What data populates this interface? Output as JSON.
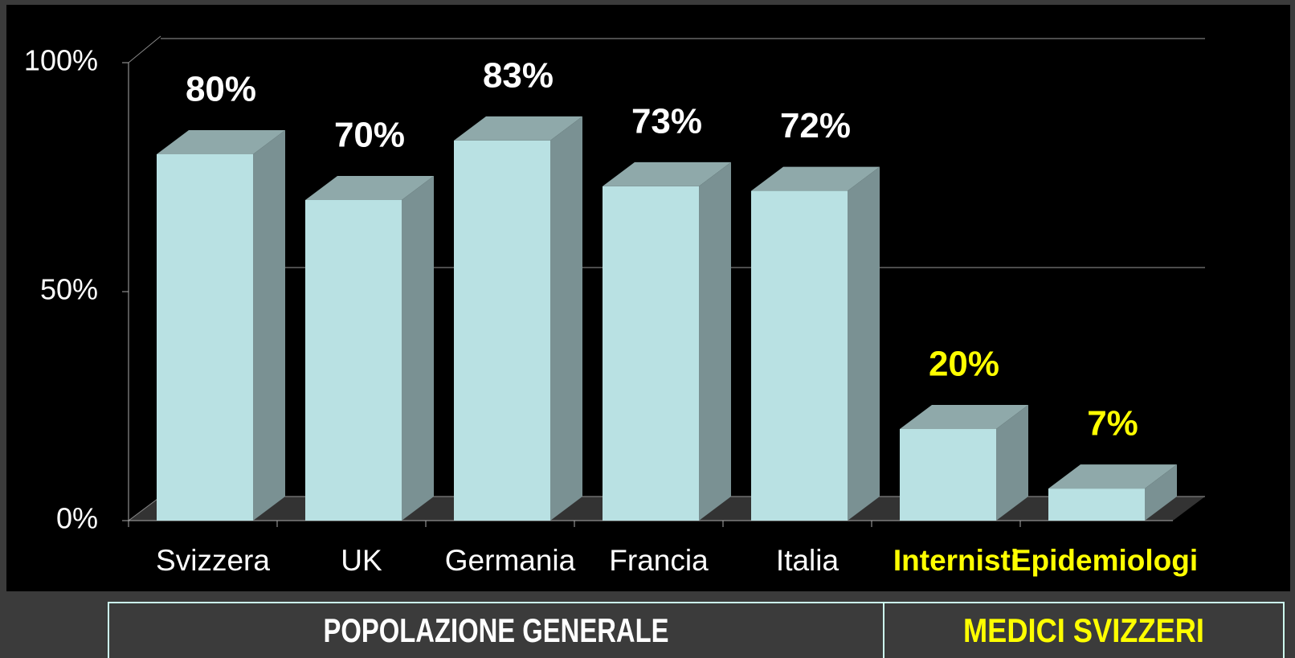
{
  "chart_data": {
    "type": "bar3d",
    "categories": [
      "Svizzera",
      "UK",
      "Germania",
      "Francia",
      "Italia",
      "Internisti",
      "Epidemiologi"
    ],
    "values": [
      80,
      70,
      83,
      73,
      72,
      20,
      7
    ],
    "value_labels": [
      "80%",
      "70%",
      "83%",
      "73%",
      "72%",
      "20%",
      "7%"
    ],
    "color": "#b9e1e3",
    "ylim": [
      0,
      100
    ],
    "yticks": [
      {
        "value": 0,
        "label": "0%"
      },
      {
        "value": 50,
        "label": "50%"
      },
      {
        "value": 100,
        "label": "100%"
      }
    ],
    "grid": true,
    "groups": [
      {
        "name": "POPOLAZIONE GENERALE",
        "color": "#ffffff"
      },
      {
        "name": "MEDICI SVIZZERI",
        "color": "#ffff00"
      }
    ]
  }
}
